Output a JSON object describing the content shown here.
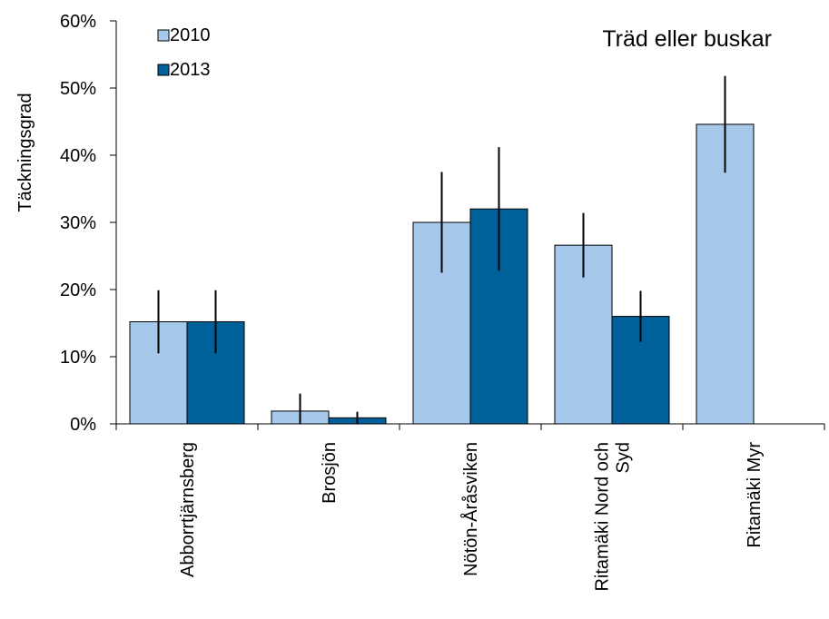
{
  "chart_data": {
    "type": "bar",
    "annotation": "Träd eller buskar",
    "ylabel": "Täckningsgrad",
    "xlabel": "",
    "ylim": [
      0,
      0.6
    ],
    "yticks": [
      "0%",
      "10%",
      "20%",
      "30%",
      "40%",
      "50%",
      "60%"
    ],
    "categories": [
      [
        "Abborrtjärnsberg"
      ],
      [
        "Brosjön"
      ],
      [
        "Nötön-Åråsviken"
      ],
      [
        "Ritamäki Nord och",
        "Syd"
      ],
      [
        "Ritamäki Myr"
      ]
    ],
    "series": [
      {
        "name": "2010",
        "color": "#a6c8ea",
        "values": [
          0.152,
          0.019,
          0.3,
          0.266,
          0.446
        ],
        "errors": [
          0.047,
          0.026,
          0.075,
          0.048,
          0.072
        ]
      },
      {
        "name": "2013",
        "color": "#00609a",
        "values": [
          0.152,
          0.009,
          0.32,
          0.16,
          null
        ],
        "errors": [
          0.047,
          0.009,
          0.092,
          0.038,
          null
        ]
      }
    ],
    "legend_position": "top-left",
    "grid": false
  }
}
